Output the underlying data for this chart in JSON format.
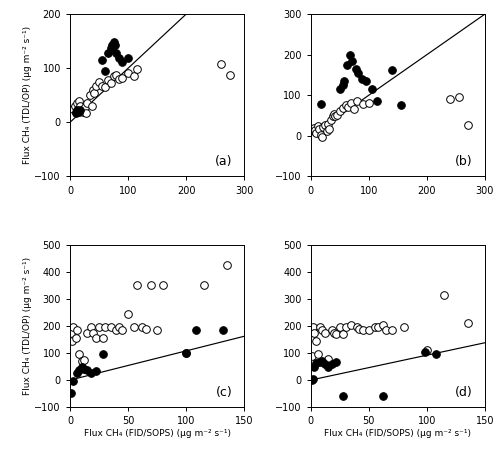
{
  "panel_a": {
    "label": "(a)",
    "open_x": [
      5,
      8,
      10,
      12,
      15,
      18,
      20,
      22,
      25,
      28,
      30,
      35,
      38,
      40,
      42,
      45,
      50,
      55,
      60,
      65,
      70,
      75,
      80,
      85,
      90,
      100,
      110,
      115,
      260,
      275
    ],
    "open_y": [
      25,
      30,
      20,
      35,
      40,
      30,
      22,
      20,
      28,
      18,
      35,
      50,
      30,
      60,
      55,
      68,
      75,
      68,
      65,
      78,
      73,
      85,
      88,
      80,
      82,
      92,
      85,
      98,
      108,
      88
    ],
    "filled_x": [
      10,
      12,
      15,
      18,
      55,
      60,
      65,
      70,
      72,
      75,
      78,
      80,
      85,
      90,
      100
    ],
    "filled_y": [
      18,
      22,
      20,
      22,
      115,
      95,
      128,
      138,
      143,
      148,
      143,
      128,
      118,
      112,
      118
    ],
    "line_x": [
      0,
      200
    ],
    "line_y": [
      0,
      200
    ],
    "xlim": [
      0,
      300
    ],
    "ylim": [
      -100,
      200
    ],
    "xticks": [
      0,
      100,
      200,
      300
    ],
    "yticks": [
      -100,
      0,
      100,
      200
    ]
  },
  "panel_b": {
    "label": "(b)",
    "open_x": [
      5,
      8,
      10,
      12,
      15,
      18,
      20,
      22,
      25,
      28,
      30,
      32,
      35,
      38,
      40,
      42,
      45,
      50,
      55,
      60,
      65,
      70,
      75,
      80,
      90,
      100,
      240,
      255,
      270
    ],
    "open_y": [
      20,
      15,
      8,
      25,
      18,
      2,
      -3,
      22,
      28,
      12,
      30,
      18,
      38,
      48,
      55,
      50,
      52,
      62,
      68,
      75,
      70,
      80,
      65,
      85,
      78,
      82,
      92,
      95,
      28
    ],
    "filled_x": [
      18,
      50,
      55,
      58,
      62,
      68,
      72,
      78,
      82,
      88,
      95,
      105,
      115,
      140,
      155
    ],
    "filled_y": [
      78,
      115,
      125,
      135,
      175,
      198,
      185,
      165,
      155,
      140,
      135,
      115,
      85,
      162,
      75
    ],
    "line_x": [
      0,
      300
    ],
    "line_y": [
      0,
      300
    ],
    "xlim": [
      0,
      300
    ],
    "ylim": [
      -100,
      300
    ],
    "xticks": [
      0,
      100,
      200,
      300
    ],
    "yticks": [
      -100,
      0,
      100,
      200,
      300
    ]
  },
  "panel_c": {
    "label": "(c)",
    "open_x": [
      1,
      2,
      3,
      5,
      6,
      8,
      10,
      12,
      15,
      18,
      20,
      22,
      25,
      28,
      30,
      35,
      40,
      42,
      45,
      50,
      55,
      58,
      62,
      65,
      70,
      75,
      80,
      100,
      115,
      135
    ],
    "open_y": [
      175,
      145,
      195,
      155,
      185,
      95,
      72,
      75,
      175,
      195,
      175,
      155,
      195,
      155,
      195,
      195,
      185,
      195,
      185,
      245,
      195,
      350,
      195,
      188,
      350,
      185,
      350,
      100,
      350,
      425
    ],
    "filled_x": [
      1,
      3,
      6,
      8,
      10,
      12,
      15,
      18,
      22,
      28,
      100,
      108,
      132
    ],
    "filled_y": [
      -48,
      -2,
      28,
      38,
      48,
      42,
      38,
      28,
      32,
      95,
      100,
      185,
      185
    ],
    "line_x": [
      0,
      150
    ],
    "line_y": [
      0,
      162
    ],
    "xlim": [
      0,
      150
    ],
    "ylim": [
      -100,
      500
    ],
    "xticks": [
      0,
      50,
      100,
      150
    ],
    "yticks": [
      -100,
      0,
      100,
      200,
      300,
      400,
      500
    ]
  },
  "panel_d": {
    "label": "(d)",
    "open_x": [
      1,
      2,
      3,
      5,
      6,
      8,
      10,
      12,
      15,
      18,
      20,
      22,
      25,
      28,
      30,
      35,
      40,
      42,
      45,
      50,
      55,
      58,
      62,
      65,
      70,
      80,
      100,
      115,
      135
    ],
    "open_y": [
      88,
      195,
      175,
      145,
      95,
      195,
      185,
      175,
      78,
      185,
      175,
      170,
      195,
      170,
      195,
      205,
      195,
      190,
      185,
      185,
      195,
      195,
      205,
      185,
      185,
      195,
      112,
      315,
      210
    ],
    "filled_x": [
      1,
      2,
      3,
      5,
      8,
      10,
      12,
      15,
      18,
      22,
      28,
      62,
      98,
      108
    ],
    "filled_y": [
      0,
      5,
      48,
      62,
      68,
      72,
      58,
      48,
      58,
      68,
      -58,
      -58,
      102,
      98
    ],
    "line_x": [
      0,
      150
    ],
    "line_y": [
      0,
      138
    ],
    "xlim": [
      0,
      150
    ],
    "ylim": [
      -100,
      500
    ],
    "xticks": [
      0,
      50,
      100,
      150
    ],
    "yticks": [
      -100,
      0,
      100,
      200,
      300,
      400,
      500
    ]
  },
  "xlabel_bottom": "Flux CH₄ (FID/SOPS) (μg m⁻² s⁻¹)",
  "ylabel_left": "Flux CH₄ (TDL/OP) (μg m⁻² s⁻¹)",
  "marker_size": 5.5,
  "line_color": "black",
  "open_marker_edge": "black",
  "open_marker_face": "white",
  "filled_marker_face": "black"
}
